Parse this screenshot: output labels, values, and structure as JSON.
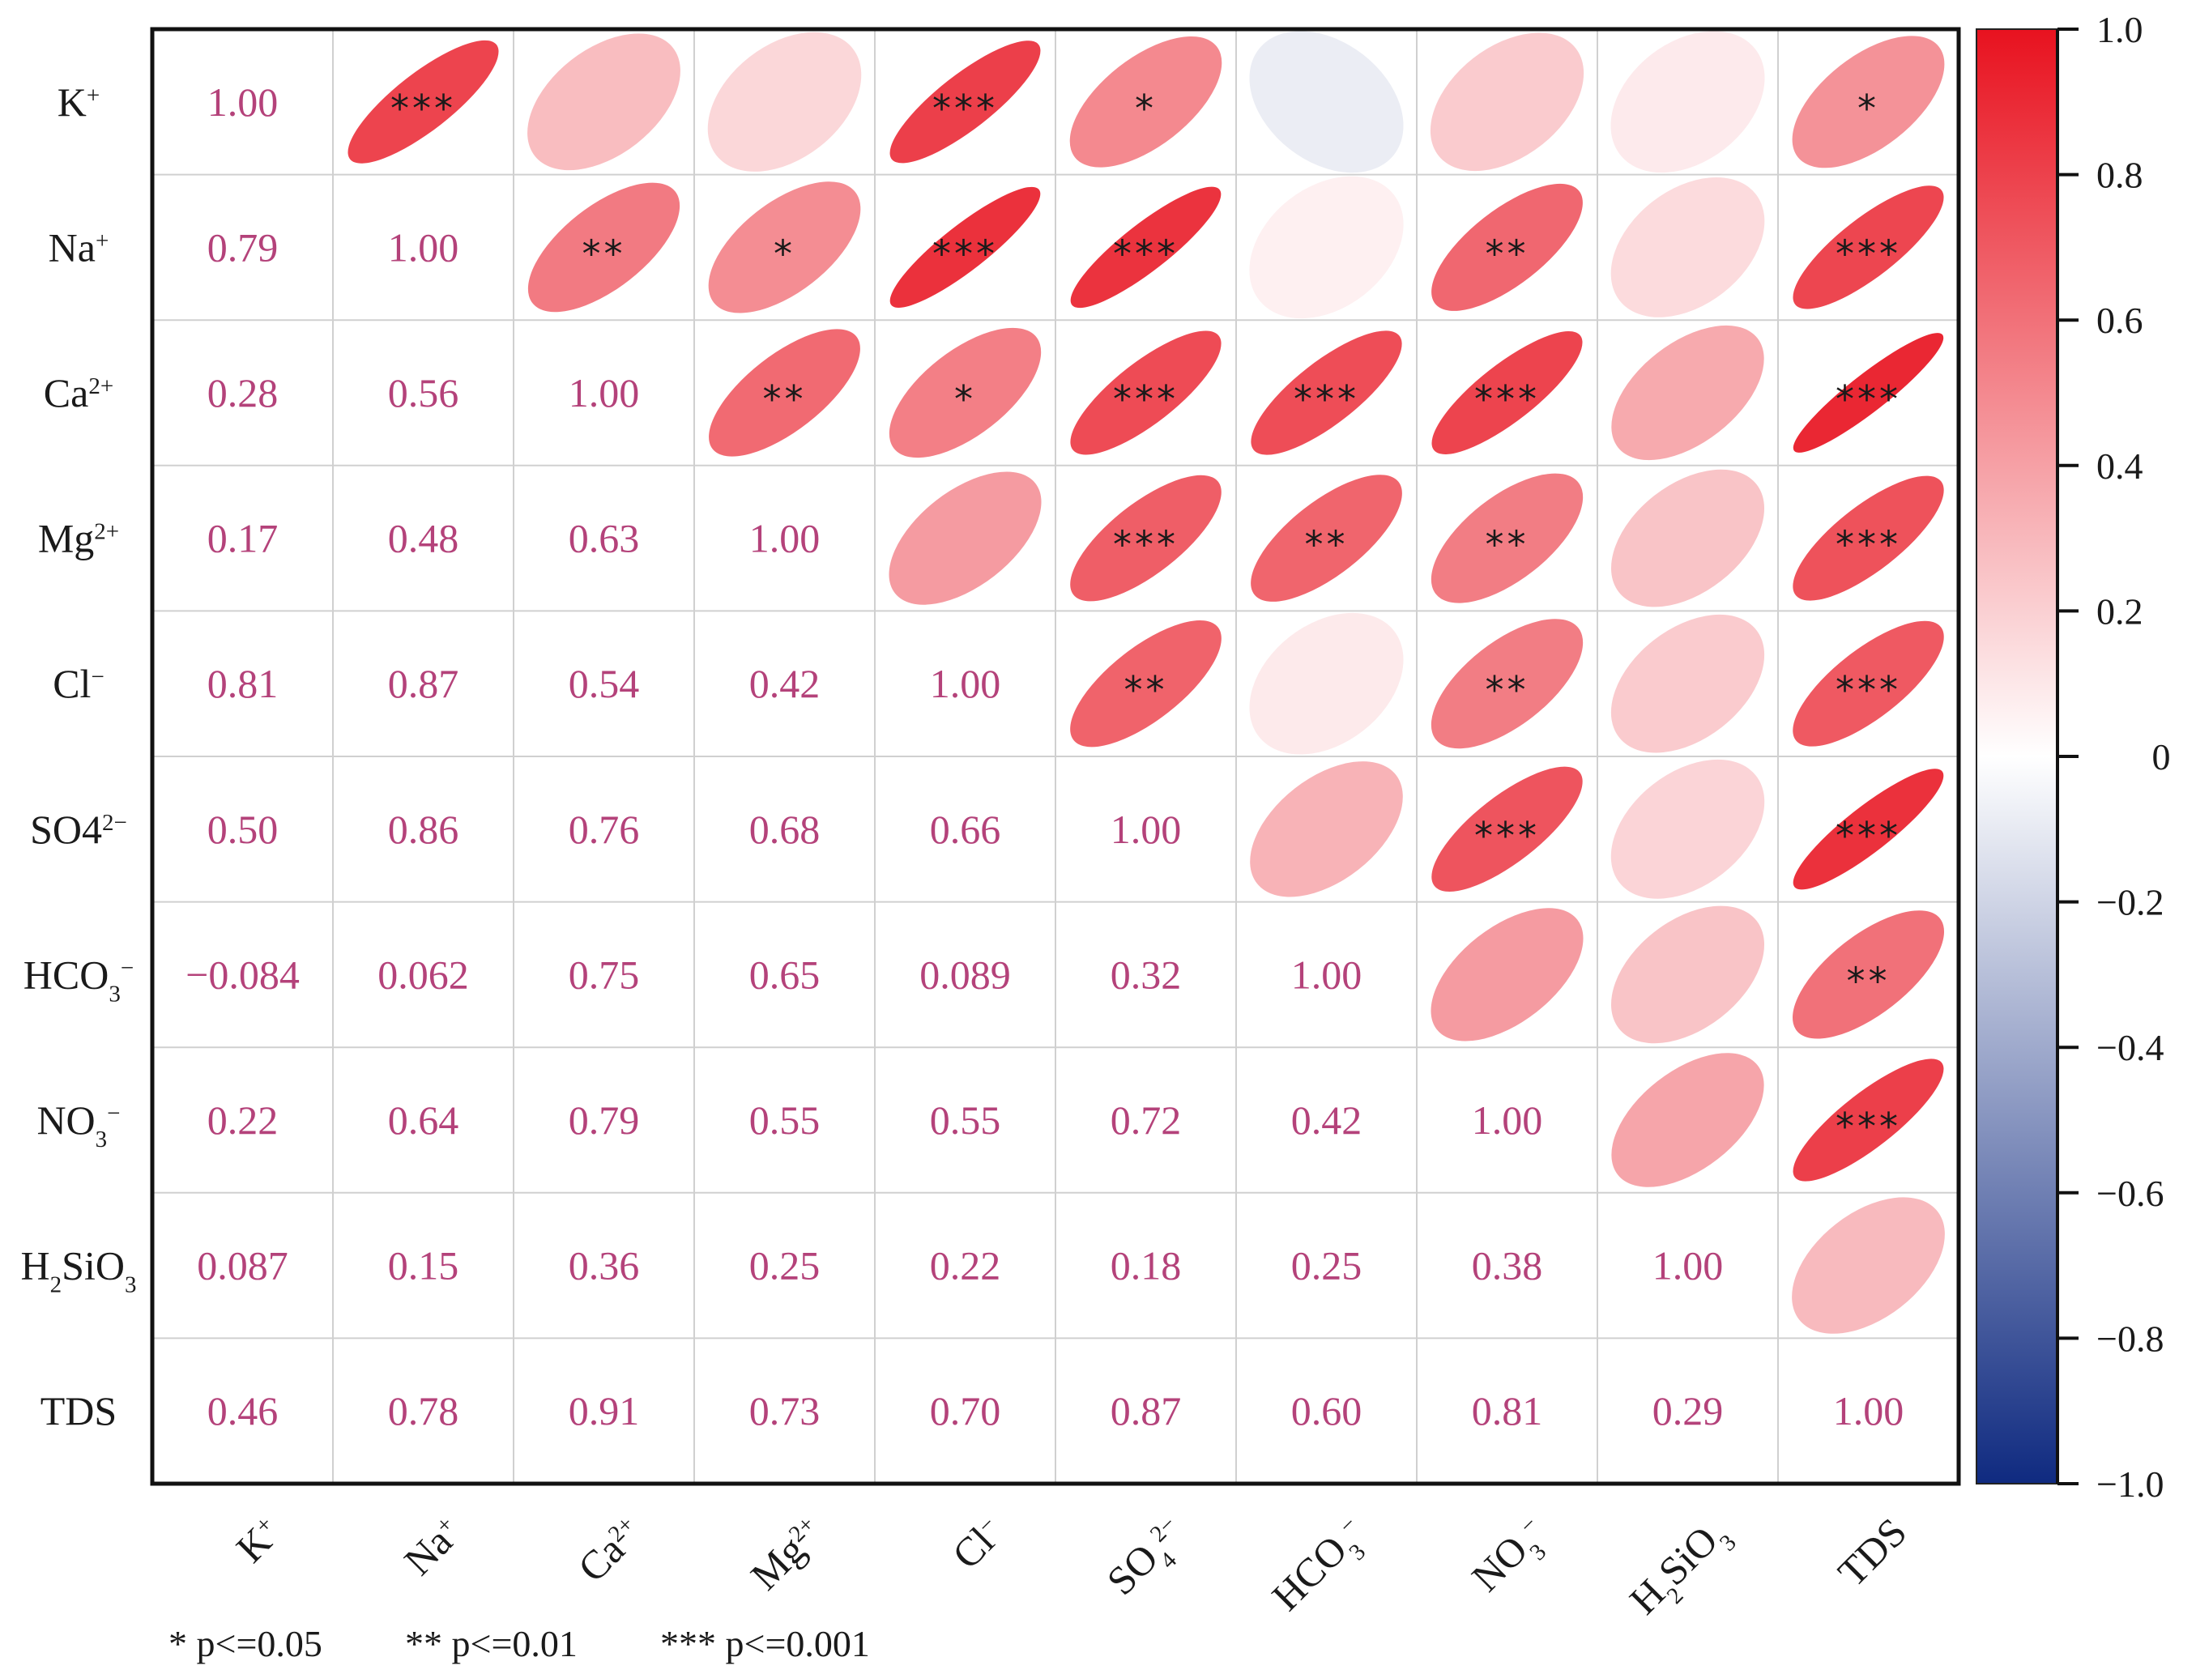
{
  "chart_data": {
    "type": "heatmap",
    "subtype": "correlation-ellipse-matrix",
    "variables": [
      {
        "base": "K",
        "sub": "",
        "sup": "+"
      },
      {
        "base": "Na",
        "sub": "",
        "sup": "+"
      },
      {
        "base": "Ca",
        "sub": "",
        "sup": "2+"
      },
      {
        "base": "Mg",
        "sub": "",
        "sup": "2+"
      },
      {
        "base": "Cl",
        "sub": "",
        "sup": "−"
      },
      {
        "base": "SO4",
        "sub": "",
        "sup": "2−"
      },
      {
        "base": "HCO",
        "sub": "3",
        "sup": "−"
      },
      {
        "base": "NO",
        "sub": "3",
        "sup": "−"
      },
      {
        "base": "H",
        "sub": "2",
        "base2": "SiO",
        "sub2": "3"
      },
      {
        "base": "TDS",
        "sub": "",
        "sup": ""
      }
    ],
    "x_variables": [
      {
        "base": "K",
        "sub": "",
        "sup": "+"
      },
      {
        "base": "Na",
        "sub": "",
        "sup": "+"
      },
      {
        "base": "Ca",
        "sub": "",
        "sup": "2+"
      },
      {
        "base": "Mg",
        "sub": "",
        "sup": "2+"
      },
      {
        "base": "Cl",
        "sub": "",
        "sup": "−"
      },
      {
        "base": "SO",
        "sub": "4",
        "sup": "2−"
      },
      {
        "base": "HCO",
        "sub": "3",
        "sup": "−"
      },
      {
        "base": "NO",
        "sub": "3",
        "sup": "−"
      },
      {
        "base": "H",
        "sub": "2",
        "base2": "SiO",
        "sub2": "3"
      },
      {
        "base": "TDS",
        "sub": "",
        "sup": ""
      }
    ],
    "lower_labels": [
      [
        "1.00"
      ],
      [
        "0.79",
        "1.00"
      ],
      [
        "0.28",
        "0.56",
        "1.00"
      ],
      [
        "0.17",
        "0.48",
        "0.63",
        "1.00"
      ],
      [
        "0.81",
        "0.87",
        "0.54",
        "0.42",
        "1.00"
      ],
      [
        "0.50",
        "0.86",
        "0.76",
        "0.68",
        "0.66",
        "1.00"
      ],
      [
        "−0.084",
        "0.062",
        "0.75",
        "0.65",
        "0.089",
        "0.32",
        "1.00"
      ],
      [
        "0.22",
        "0.64",
        "0.79",
        "0.55",
        "0.55",
        "0.72",
        "0.42",
        "1.00"
      ],
      [
        "0.087",
        "0.15",
        "0.36",
        "0.25",
        "0.22",
        "0.18",
        "0.25",
        "0.38",
        "1.00"
      ],
      [
        "0.46",
        "0.78",
        "0.91",
        "0.73",
        "0.70",
        "0.87",
        "0.60",
        "0.81",
        "0.29",
        "1.00"
      ]
    ],
    "matrix": [
      [
        1.0,
        0.79,
        0.28,
        0.17,
        0.81,
        0.5,
        -0.084,
        0.22,
        0.087,
        0.46
      ],
      [
        0.79,
        1.0,
        0.56,
        0.48,
        0.87,
        0.86,
        0.062,
        0.64,
        0.15,
        0.78
      ],
      [
        0.28,
        0.56,
        1.0,
        0.63,
        0.54,
        0.76,
        0.75,
        0.79,
        0.36,
        0.91
      ],
      [
        0.17,
        0.48,
        0.63,
        1.0,
        0.42,
        0.68,
        0.65,
        0.55,
        0.25,
        0.73
      ],
      [
        0.81,
        0.87,
        0.54,
        0.42,
        1.0,
        0.66,
        0.089,
        0.55,
        0.22,
        0.7
      ],
      [
        0.5,
        0.86,
        0.76,
        0.68,
        0.66,
        1.0,
        0.32,
        0.72,
        0.18,
        0.87
      ],
      [
        -0.084,
        0.062,
        0.75,
        0.65,
        0.089,
        0.32,
        1.0,
        0.42,
        0.25,
        0.6
      ],
      [
        0.22,
        0.64,
        0.79,
        0.55,
        0.55,
        0.72,
        0.42,
        1.0,
        0.38,
        0.81
      ],
      [
        0.087,
        0.15,
        0.36,
        0.25,
        0.22,
        0.18,
        0.25,
        0.38,
        1.0,
        0.29
      ],
      [
        0.46,
        0.78,
        0.91,
        0.73,
        0.7,
        0.87,
        0.6,
        0.81,
        0.29,
        1.0
      ]
    ],
    "significance": [
      [
        "",
        "***",
        "",
        "",
        "***",
        "*",
        "",
        "",
        "",
        "*"
      ],
      [
        "",
        "",
        "**",
        "*",
        "***",
        "***",
        "",
        "**",
        "",
        "***"
      ],
      [
        "",
        "",
        "",
        "**",
        "*",
        "***",
        "***",
        "***",
        "",
        "***"
      ],
      [
        "",
        "",
        "",
        "",
        "",
        "***",
        "**",
        "**",
        "",
        "***"
      ],
      [
        "",
        "",
        "",
        "",
        "",
        "**",
        "",
        "**",
        "",
        "***"
      ],
      [
        "",
        "",
        "",
        "",
        "",
        "",
        "",
        "***",
        "",
        "***"
      ],
      [
        "",
        "",
        "",
        "",
        "",
        "",
        "",
        "",
        "",
        "**"
      ],
      [
        "",
        "",
        "",
        "",
        "",
        "",
        "",
        "",
        "",
        "***"
      ],
      [
        "",
        "",
        "",
        "",
        "",
        "",
        "",
        "",
        "",
        ""
      ],
      [
        "",
        "",
        "",
        "",
        "",
        "",
        "",
        "",
        "",
        ""
      ]
    ],
    "colorbar": {
      "range": [
        -1.0,
        1.0
      ],
      "ticks": [
        "1.0",
        "0.8",
        "0.6",
        "0.4",
        "0.2",
        "0",
        "−0.2",
        "−0.4",
        "−0.6",
        "−0.8",
        "−1.0"
      ],
      "tick_values": [
        1.0,
        0.8,
        0.6,
        0.4,
        0.2,
        0,
        -0.2,
        -0.4,
        -0.6,
        -0.8,
        -1.0
      ],
      "positive_color": "#e8121f",
      "neutral_color": "#ffffff",
      "negative_color": "#0f2a80"
    },
    "legend": [
      "* p<=0.05",
      "** p<=0.01",
      "*** p<=0.001"
    ],
    "title": "",
    "xlabel": "",
    "ylabel": ""
  }
}
